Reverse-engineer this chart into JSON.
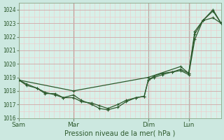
{
  "background_color": "#cce8e0",
  "plot_bg_color": "#d8f0e8",
  "minor_grid_color": "#f0c8c8",
  "major_grid_color": "#d0a8a8",
  "line_color": "#2d5a2d",
  "spine_color": "#88a888",
  "ylim": [
    1016,
    1024.5
  ],
  "yticks": [
    1016,
    1017,
    1018,
    1019,
    1020,
    1021,
    1022,
    1023,
    1024
  ],
  "xlabel": "Pression niveau de la mer( hPa )",
  "xtick_labels": [
    "Sam",
    "Mar",
    "Dim",
    "Lun"
  ],
  "xtick_positions": [
    0.0,
    0.27,
    0.64,
    0.84
  ],
  "vline_positions": [
    0.0,
    0.27,
    0.64,
    0.84
  ],
  "series1_x": [
    0.0,
    0.04,
    0.09,
    0.13,
    0.18,
    0.22,
    0.27,
    0.31,
    0.36,
    0.4,
    0.44,
    0.49,
    0.53,
    0.58,
    0.62,
    0.64,
    0.67,
    0.71,
    0.76,
    0.8,
    0.84,
    0.87,
    0.91,
    0.96,
    1.0
  ],
  "series1_y": [
    1018.8,
    1018.5,
    1018.2,
    1017.9,
    1017.7,
    1017.5,
    1017.7,
    1017.3,
    1017.0,
    1016.7,
    1016.6,
    1016.8,
    1017.2,
    1017.5,
    1017.6,
    1018.8,
    1019.0,
    1019.2,
    1019.4,
    1019.5,
    1019.2,
    1021.8,
    1023.2,
    1023.4,
    1023.0
  ],
  "series2_x": [
    0.0,
    0.04,
    0.09,
    0.13,
    0.18,
    0.22,
    0.27,
    0.31,
    0.36,
    0.4,
    0.44,
    0.49,
    0.53,
    0.58,
    0.62,
    0.64,
    0.67,
    0.71,
    0.76,
    0.8,
    0.84,
    0.87,
    0.91,
    0.96,
    1.0
  ],
  "series2_y": [
    1018.8,
    1018.4,
    1018.2,
    1017.8,
    1017.8,
    1017.5,
    1017.5,
    1017.2,
    1017.1,
    1016.9,
    1016.7,
    1017.0,
    1017.3,
    1017.5,
    1017.6,
    1018.8,
    1019.1,
    1019.3,
    1019.4,
    1019.6,
    1019.3,
    1022.4,
    1023.2,
    1023.9,
    1023.0
  ],
  "series3_x": [
    0.0,
    0.27,
    0.64,
    0.8,
    0.84,
    0.87,
    0.91,
    0.96,
    1.0
  ],
  "series3_y": [
    1018.8,
    1018.0,
    1019.0,
    1019.8,
    1019.3,
    1022.2,
    1023.2,
    1024.0,
    1023.0
  ]
}
